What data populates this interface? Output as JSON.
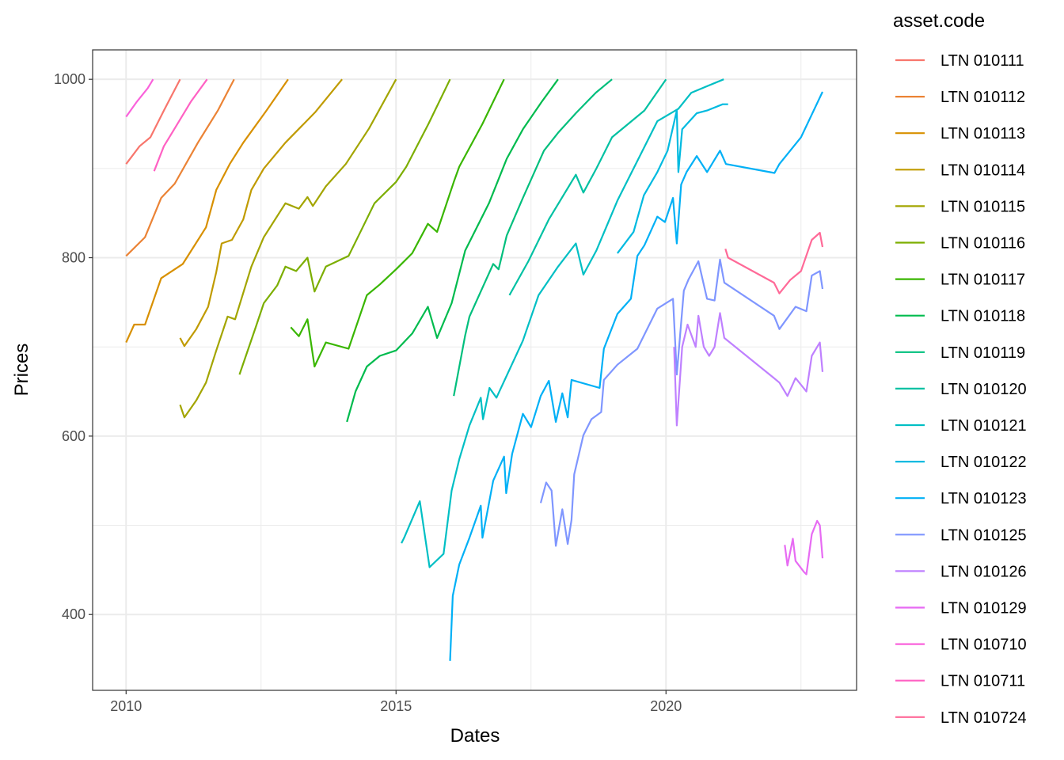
{
  "chart_data": {
    "type": "line",
    "title": "",
    "xlabel": "Dates",
    "ylabel": "Prices",
    "xlim": [
      2009.38,
      2023.53
    ],
    "ylim": [
      315,
      1033
    ],
    "x_ticks": [
      2010,
      2015,
      2020
    ],
    "x_tick_labels": [
      "2010",
      "2015",
      "2020"
    ],
    "x_minor": [
      2012.5,
      2017.5,
      2022.5
    ],
    "y_ticks": [
      400,
      600,
      800,
      1000
    ],
    "y_tick_labels": [
      "400",
      "600",
      "800",
      "1000"
    ],
    "y_minor": [
      500,
      700,
      900
    ],
    "grid": true,
    "legend": {
      "title": "asset.code",
      "placement": "right"
    },
    "series": [
      {
        "name": "LTN 010111",
        "color": "#F8766D",
        "points": [
          [
            2010.0,
            905
          ],
          [
            2010.25,
            925
          ],
          [
            2010.45,
            935
          ],
          [
            2010.7,
            965
          ],
          [
            2011.0,
            1000
          ]
        ]
      },
      {
        "name": "LTN 010112",
        "color": "#EB8335",
        "points": [
          [
            2010.0,
            802
          ],
          [
            2010.35,
            823
          ],
          [
            2010.65,
            867
          ],
          [
            2010.9,
            883
          ],
          [
            2011.33,
            929
          ],
          [
            2011.7,
            965
          ],
          [
            2012.0,
            1000
          ]
        ]
      },
      {
        "name": "LTN 010113",
        "color": "#D89000",
        "points": [
          [
            2010.0,
            705
          ],
          [
            2010.15,
            725
          ],
          [
            2010.35,
            725
          ],
          [
            2010.65,
            777
          ],
          [
            2011.05,
            793
          ],
          [
            2011.48,
            834
          ],
          [
            2011.67,
            876
          ],
          [
            2011.92,
            905
          ],
          [
            2012.17,
            929
          ],
          [
            2012.6,
            965
          ],
          [
            2013.0,
            1000
          ]
        ]
      },
      {
        "name": "LTN 010114",
        "color": "#C09B00",
        "points": [
          [
            2011.0,
            710
          ],
          [
            2011.08,
            701
          ],
          [
            2011.3,
            720
          ],
          [
            2011.52,
            745
          ],
          [
            2011.67,
            784
          ],
          [
            2011.77,
            816
          ],
          [
            2011.96,
            820
          ],
          [
            2012.17,
            843
          ],
          [
            2012.32,
            876
          ],
          [
            2012.55,
            900
          ],
          [
            2012.95,
            929
          ],
          [
            2013.5,
            963
          ],
          [
            2014.0,
            1000
          ]
        ]
      },
      {
        "name": "LTN 010115",
        "color": "#A3A500",
        "points": [
          [
            2011.0,
            635
          ],
          [
            2011.08,
            621
          ],
          [
            2011.3,
            640
          ],
          [
            2011.48,
            660
          ],
          [
            2011.67,
            696
          ],
          [
            2011.88,
            734
          ],
          [
            2012.02,
            731
          ],
          [
            2012.32,
            790
          ],
          [
            2012.55,
            823
          ],
          [
            2012.95,
            861
          ],
          [
            2013.2,
            855
          ],
          [
            2013.36,
            868
          ],
          [
            2013.46,
            858
          ],
          [
            2013.7,
            880
          ],
          [
            2014.07,
            905
          ],
          [
            2014.5,
            945
          ],
          [
            2015.0,
            1000
          ]
        ]
      },
      {
        "name": "LTN 010116",
        "color": "#7CAE00",
        "points": [
          [
            2012.1,
            669
          ],
          [
            2012.4,
            722
          ],
          [
            2012.55,
            749
          ],
          [
            2012.8,
            769
          ],
          [
            2012.95,
            790
          ],
          [
            2013.15,
            785
          ],
          [
            2013.36,
            800
          ],
          [
            2013.49,
            762
          ],
          [
            2013.7,
            790
          ],
          [
            2014.12,
            802
          ],
          [
            2014.35,
            830
          ],
          [
            2014.6,
            861
          ],
          [
            2015.0,
            885
          ],
          [
            2015.19,
            902
          ],
          [
            2015.6,
            950
          ],
          [
            2016.0,
            1000
          ]
        ]
      },
      {
        "name": "LTN 010117",
        "color": "#39B600",
        "points": [
          [
            2013.05,
            722
          ],
          [
            2013.2,
            712
          ],
          [
            2013.36,
            731
          ],
          [
            2013.49,
            678
          ],
          [
            2013.7,
            705
          ],
          [
            2014.12,
            698
          ],
          [
            2014.46,
            758
          ],
          [
            2014.7,
            770
          ],
          [
            2015.0,
            787
          ],
          [
            2015.3,
            805
          ],
          [
            2015.59,
            838
          ],
          [
            2015.76,
            829
          ],
          [
            2016.07,
            885
          ],
          [
            2016.17,
            902
          ],
          [
            2016.6,
            950
          ],
          [
            2017.0,
            1000
          ]
        ]
      },
      {
        "name": "LTN 010118",
        "color": "#00BB4E",
        "points": [
          [
            2014.09,
            616
          ],
          [
            2014.25,
            650
          ],
          [
            2014.46,
            678
          ],
          [
            2014.7,
            690
          ],
          [
            2015.0,
            696
          ],
          [
            2015.3,
            715
          ],
          [
            2015.59,
            745
          ],
          [
            2015.76,
            710
          ],
          [
            2016.03,
            749
          ],
          [
            2016.28,
            808
          ],
          [
            2016.72,
            861
          ],
          [
            2017.05,
            911
          ],
          [
            2017.35,
            944
          ],
          [
            2017.7,
            975
          ],
          [
            2018.0,
            1000
          ]
        ]
      },
      {
        "name": "LTN 010119",
        "color": "#00BF7D",
        "points": [
          [
            2016.07,
            645
          ],
          [
            2016.28,
            713
          ],
          [
            2016.36,
            734
          ],
          [
            2016.8,
            793
          ],
          [
            2016.9,
            787
          ],
          [
            2017.05,
            825
          ],
          [
            2017.35,
            867
          ],
          [
            2017.74,
            920
          ],
          [
            2018.0,
            940
          ],
          [
            2018.33,
            962
          ],
          [
            2018.7,
            985
          ],
          [
            2019.0,
            1000
          ]
        ]
      },
      {
        "name": "LTN 010120",
        "color": "#00C1A3",
        "points": [
          [
            2017.1,
            758
          ],
          [
            2017.45,
            796
          ],
          [
            2017.83,
            843
          ],
          [
            2018.33,
            893
          ],
          [
            2018.47,
            873
          ],
          [
            2018.71,
            900
          ],
          [
            2019.0,
            935
          ],
          [
            2019.6,
            965
          ],
          [
            2020.0,
            1000
          ]
        ]
      },
      {
        "name": "LTN 010121",
        "color": "#00BFC4",
        "points": [
          [
            2015.1,
            480
          ],
          [
            2015.15,
            486
          ],
          [
            2015.44,
            527
          ],
          [
            2015.62,
            453
          ],
          [
            2015.88,
            468
          ],
          [
            2016.03,
            539
          ],
          [
            2016.17,
            574
          ],
          [
            2016.36,
            612
          ],
          [
            2016.57,
            643
          ],
          [
            2016.61,
            619
          ],
          [
            2016.73,
            654
          ],
          [
            2016.86,
            643
          ],
          [
            2017.35,
            707
          ],
          [
            2017.64,
            758
          ],
          [
            2018.0,
            790
          ],
          [
            2018.33,
            816
          ],
          [
            2018.47,
            781
          ],
          [
            2018.71,
            808
          ],
          [
            2019.1,
            864
          ],
          [
            2019.84,
            953
          ],
          [
            2020.23,
            967
          ],
          [
            2020.47,
            985
          ],
          [
            2021.07,
            1000
          ]
        ]
      },
      {
        "name": "LTN 010122",
        "color": "#00BAE0",
        "points": [
          [
            2019.1,
            805
          ],
          [
            2019.4,
            829
          ],
          [
            2019.59,
            870
          ],
          [
            2019.84,
            896
          ],
          [
            2020.03,
            920
          ],
          [
            2020.2,
            965
          ],
          [
            2020.23,
            896
          ],
          [
            2020.3,
            944
          ],
          [
            2020.57,
            962
          ],
          [
            2020.76,
            965
          ],
          [
            2021.05,
            972
          ],
          [
            2021.15,
            972
          ]
        ]
      },
      {
        "name": "LTN 010123",
        "color": "#00B0F6",
        "points": [
          [
            2016.0,
            348
          ],
          [
            2016.05,
            421
          ],
          [
            2016.17,
            456
          ],
          [
            2016.36,
            486
          ],
          [
            2016.57,
            522
          ],
          [
            2016.6,
            486
          ],
          [
            2016.8,
            550
          ],
          [
            2017.0,
            577
          ],
          [
            2017.04,
            536
          ],
          [
            2017.15,
            580
          ],
          [
            2017.35,
            625
          ],
          [
            2017.5,
            610
          ],
          [
            2017.68,
            645
          ],
          [
            2017.83,
            662
          ],
          [
            2017.96,
            616
          ],
          [
            2018.08,
            648
          ],
          [
            2018.18,
            621
          ],
          [
            2018.25,
            663
          ],
          [
            2018.77,
            654
          ],
          [
            2018.85,
            698
          ],
          [
            2019.1,
            737
          ],
          [
            2019.35,
            754
          ],
          [
            2019.47,
            802
          ],
          [
            2019.6,
            814
          ],
          [
            2019.84,
            846
          ],
          [
            2019.98,
            840
          ],
          [
            2020.13,
            867
          ],
          [
            2020.2,
            816
          ],
          [
            2020.28,
            882
          ],
          [
            2020.38,
            896
          ],
          [
            2020.57,
            914
          ],
          [
            2020.76,
            896
          ],
          [
            2021.0,
            920
          ],
          [
            2021.11,
            905
          ],
          [
            2022.01,
            895
          ],
          [
            2022.1,
            905
          ],
          [
            2022.5,
            935
          ],
          [
            2022.9,
            986
          ]
        ]
      },
      {
        "name": "LTN 010125",
        "color": "#7F96FF",
        "points": [
          [
            2017.68,
            525
          ],
          [
            2017.78,
            548
          ],
          [
            2017.88,
            539
          ],
          [
            2017.96,
            477
          ],
          [
            2018.08,
            518
          ],
          [
            2018.18,
            479
          ],
          [
            2018.25,
            506
          ],
          [
            2018.3,
            557
          ],
          [
            2018.47,
            601
          ],
          [
            2018.62,
            619
          ],
          [
            2018.8,
            627
          ],
          [
            2018.85,
            663
          ],
          [
            2019.1,
            680
          ],
          [
            2019.47,
            698
          ],
          [
            2019.84,
            743
          ],
          [
            2020.13,
            754
          ],
          [
            2020.2,
            669
          ],
          [
            2020.33,
            763
          ],
          [
            2020.42,
            776
          ],
          [
            2020.6,
            796
          ],
          [
            2020.76,
            754
          ],
          [
            2020.9,
            752
          ],
          [
            2021.0,
            798
          ],
          [
            2021.08,
            772
          ],
          [
            2022.0,
            735
          ],
          [
            2022.1,
            720
          ],
          [
            2022.4,
            745
          ],
          [
            2022.6,
            740
          ],
          [
            2022.7,
            780
          ],
          [
            2022.85,
            785
          ],
          [
            2022.9,
            765
          ]
        ]
      },
      {
        "name": "LTN 010126",
        "color": "#BF80FF",
        "points": [
          [
            2020.15,
            700
          ],
          [
            2020.2,
            612
          ],
          [
            2020.3,
            700
          ],
          [
            2020.4,
            725
          ],
          [
            2020.55,
            700
          ],
          [
            2020.6,
            735
          ],
          [
            2020.7,
            700
          ],
          [
            2020.8,
            690
          ],
          [
            2020.9,
            700
          ],
          [
            2021.0,
            738
          ],
          [
            2021.08,
            710
          ],
          [
            2022.0,
            665
          ],
          [
            2022.1,
            660
          ],
          [
            2022.25,
            645
          ],
          [
            2022.4,
            665
          ],
          [
            2022.6,
            650
          ],
          [
            2022.7,
            690
          ],
          [
            2022.85,
            705
          ],
          [
            2022.9,
            672
          ]
        ]
      },
      {
        "name": "LTN 010129",
        "color": "#E76BF3",
        "points": [
          [
            2022.2,
            478
          ],
          [
            2022.25,
            455
          ],
          [
            2022.35,
            485
          ],
          [
            2022.4,
            460
          ],
          [
            2022.55,
            448
          ],
          [
            2022.6,
            445
          ],
          [
            2022.7,
            490
          ],
          [
            2022.8,
            505
          ],
          [
            2022.85,
            500
          ],
          [
            2022.9,
            463
          ]
        ]
      },
      {
        "name": "LTN 010710",
        "color": "#FA62DB",
        "points": [
          [
            2010.0,
            958
          ],
          [
            2010.2,
            975
          ],
          [
            2010.4,
            990
          ],
          [
            2010.5,
            1000
          ]
        ]
      },
      {
        "name": "LTN 010711",
        "color": "#FF61C3",
        "points": [
          [
            2010.52,
            897
          ],
          [
            2010.7,
            925
          ],
          [
            2010.85,
            940
          ],
          [
            2011.2,
            975
          ],
          [
            2011.5,
            1000
          ]
        ]
      },
      {
        "name": "LTN 010724",
        "color": "#FF6A98",
        "points": [
          [
            2021.1,
            810
          ],
          [
            2021.15,
            800
          ],
          [
            2022.0,
            772
          ],
          [
            2022.1,
            760
          ],
          [
            2022.3,
            775
          ],
          [
            2022.5,
            785
          ],
          [
            2022.7,
            820
          ],
          [
            2022.85,
            828
          ],
          [
            2022.9,
            812
          ]
        ]
      }
    ]
  }
}
